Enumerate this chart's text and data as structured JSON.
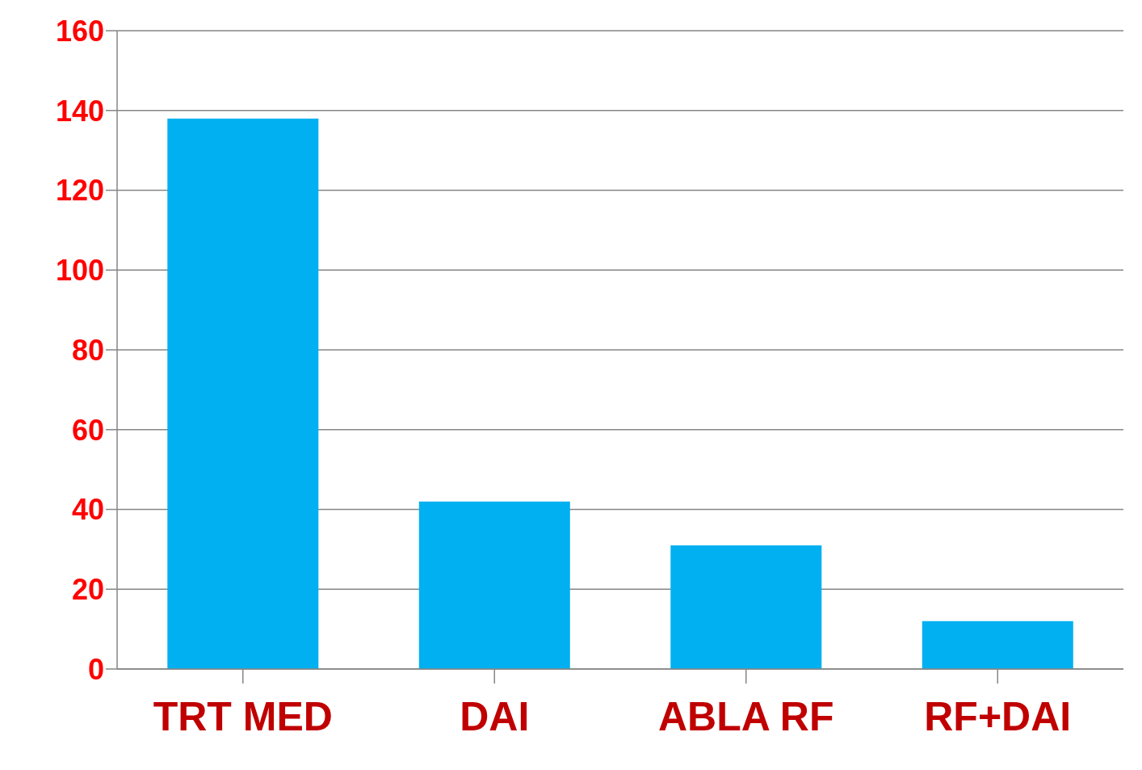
{
  "chart_data": {
    "type": "bar",
    "categories": [
      "TRT MED",
      "DAI",
      "ABLA RF",
      "RF+DAI"
    ],
    "values": [
      138,
      42,
      31,
      12
    ],
    "color": "#00b0f0",
    "ylim": [
      0,
      160
    ],
    "yticks": [
      0,
      20,
      40,
      60,
      80,
      100,
      120,
      140,
      160
    ],
    "grid": "y"
  }
}
